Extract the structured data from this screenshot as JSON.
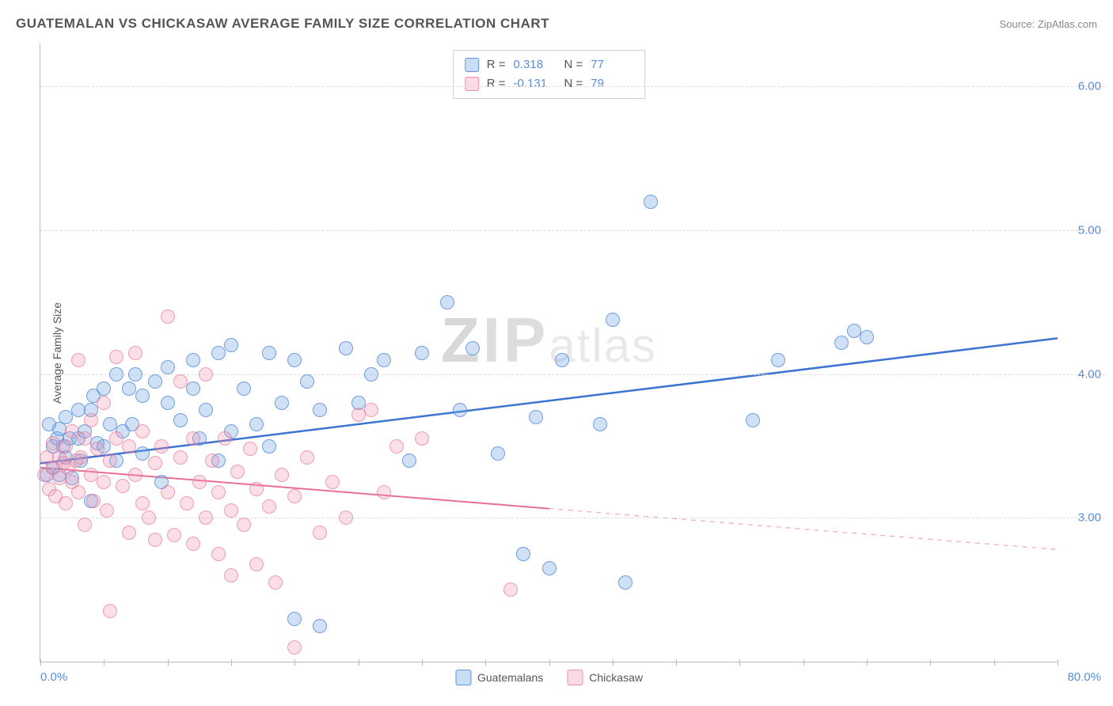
{
  "header": {
    "title": "GUATEMALAN VS CHICKASAW AVERAGE FAMILY SIZE CORRELATION CHART",
    "source_prefix": "Source: ",
    "source_name": "ZipAtlas.com"
  },
  "ylabel": "Average Family Size",
  "watermark": {
    "part1": "ZIP",
    "part2": "atlas"
  },
  "chart": {
    "type": "scatter",
    "xlim": [
      0,
      80
    ],
    "ylim": [
      2.0,
      6.3
    ],
    "x_tick_step": 5,
    "x_label_min": "0.0%",
    "x_label_max": "80.0%",
    "y_ticks": [
      3.0,
      4.0,
      5.0,
      6.0
    ],
    "y_tick_labels": [
      "3.00",
      "4.00",
      "5.00",
      "6.00"
    ],
    "grid_color": "#dddddd",
    "axis_color": "#bbbbbb",
    "background_color": "#ffffff",
    "tick_label_color": "#5b8dd6",
    "series": [
      {
        "key": "a",
        "label": "Guatemalans",
        "color_fill": "rgba(120,170,230,0.35)",
        "color_stroke": "rgba(70,130,210,0.7)",
        "line_color": "#3b74d1",
        "line_width": 2.5,
        "r_value": "0.318",
        "n_value": "77",
        "trend": {
          "x1": 0,
          "y1": 3.38,
          "x2": 80,
          "y2": 4.25,
          "solid_until_x": 80
        },
        "points": [
          [
            0.5,
            3.3
          ],
          [
            0.7,
            3.65
          ],
          [
            1.0,
            3.5
          ],
          [
            1.0,
            3.35
          ],
          [
            1.3,
            3.55
          ],
          [
            1.5,
            3.3
          ],
          [
            1.5,
            3.62
          ],
          [
            1.8,
            3.5
          ],
          [
            2.0,
            3.42
          ],
          [
            2.0,
            3.7
          ],
          [
            2.3,
            3.55
          ],
          [
            2.5,
            3.28
          ],
          [
            3.0,
            3.55
          ],
          [
            3.0,
            3.75
          ],
          [
            3.2,
            3.4
          ],
          [
            3.5,
            3.6
          ],
          [
            4.0,
            3.12
          ],
          [
            4.0,
            3.75
          ],
          [
            4.2,
            3.85
          ],
          [
            4.5,
            3.52
          ],
          [
            5.0,
            3.9
          ],
          [
            5.0,
            3.5
          ],
          [
            5.5,
            3.65
          ],
          [
            6.0,
            3.4
          ],
          [
            6.0,
            4.0
          ],
          [
            6.5,
            3.6
          ],
          [
            7.0,
            3.9
          ],
          [
            7.2,
            3.65
          ],
          [
            7.5,
            4.0
          ],
          [
            8.0,
            3.45
          ],
          [
            8.0,
            3.85
          ],
          [
            9.0,
            3.95
          ],
          [
            9.5,
            3.25
          ],
          [
            10.0,
            3.8
          ],
          [
            10.0,
            4.05
          ],
          [
            11.0,
            3.68
          ],
          [
            12.0,
            3.9
          ],
          [
            12.0,
            4.1
          ],
          [
            12.5,
            3.55
          ],
          [
            13.0,
            3.75
          ],
          [
            14.0,
            4.15
          ],
          [
            14.0,
            3.4
          ],
          [
            15.0,
            4.2
          ],
          [
            15.0,
            3.6
          ],
          [
            16.0,
            3.9
          ],
          [
            17.0,
            3.65
          ],
          [
            18.0,
            4.15
          ],
          [
            18.0,
            3.5
          ],
          [
            19.0,
            3.8
          ],
          [
            20.0,
            4.1
          ],
          [
            20.0,
            2.3
          ],
          [
            21.0,
            3.95
          ],
          [
            22.0,
            3.75
          ],
          [
            22.0,
            2.25
          ],
          [
            24.0,
            4.18
          ],
          [
            25.0,
            3.8
          ],
          [
            26.0,
            4.0
          ],
          [
            27.0,
            4.1
          ],
          [
            29.0,
            3.4
          ],
          [
            30.0,
            4.15
          ],
          [
            32.0,
            4.5
          ],
          [
            33.0,
            3.75
          ],
          [
            34.0,
            4.18
          ],
          [
            36.0,
            3.45
          ],
          [
            38.0,
            2.75
          ],
          [
            39.0,
            3.7
          ],
          [
            40.0,
            2.65
          ],
          [
            41.0,
            4.1
          ],
          [
            44.0,
            3.65
          ],
          [
            45.0,
            4.38
          ],
          [
            46.0,
            2.55
          ],
          [
            48.0,
            5.2
          ],
          [
            56.0,
            3.68
          ],
          [
            58.0,
            4.1
          ],
          [
            63.0,
            4.22
          ],
          [
            64.0,
            4.3
          ],
          [
            65.0,
            4.26
          ]
        ]
      },
      {
        "key": "b",
        "label": "Chickasaw",
        "color_fill": "rgba(240,150,175,0.3)",
        "color_stroke": "rgba(230,110,145,0.6)",
        "line_color": "#e76f93",
        "line_width": 2,
        "r_value": "-0.131",
        "n_value": "79",
        "trend": {
          "x1": 0,
          "y1": 3.35,
          "x2": 80,
          "y2": 2.78,
          "solid_until_x": 40
        },
        "points": [
          [
            0.3,
            3.3
          ],
          [
            0.5,
            3.42
          ],
          [
            0.7,
            3.2
          ],
          [
            1.0,
            3.35
          ],
          [
            1.0,
            3.52
          ],
          [
            1.2,
            3.15
          ],
          [
            1.5,
            3.42
          ],
          [
            1.5,
            3.28
          ],
          [
            1.8,
            3.38
          ],
          [
            2.0,
            3.1
          ],
          [
            2.0,
            3.5
          ],
          [
            2.2,
            3.35
          ],
          [
            2.5,
            3.25
          ],
          [
            2.5,
            3.6
          ],
          [
            2.8,
            3.4
          ],
          [
            3.0,
            3.18
          ],
          [
            3.0,
            4.1
          ],
          [
            3.2,
            3.42
          ],
          [
            3.5,
            2.95
          ],
          [
            3.5,
            3.55
          ],
          [
            4.0,
            3.3
          ],
          [
            4.0,
            3.68
          ],
          [
            4.2,
            3.12
          ],
          [
            4.5,
            3.48
          ],
          [
            5.0,
            3.25
          ],
          [
            5.0,
            3.8
          ],
          [
            5.2,
            3.05
          ],
          [
            5.5,
            3.4
          ],
          [
            5.5,
            2.35
          ],
          [
            6.0,
            3.55
          ],
          [
            6.0,
            4.12
          ],
          [
            6.5,
            3.22
          ],
          [
            7.0,
            2.9
          ],
          [
            7.0,
            3.5
          ],
          [
            7.5,
            4.15
          ],
          [
            7.5,
            3.3
          ],
          [
            8.0,
            3.1
          ],
          [
            8.0,
            3.6
          ],
          [
            8.5,
            3.0
          ],
          [
            9.0,
            3.38
          ],
          [
            9.0,
            2.85
          ],
          [
            9.5,
            3.5
          ],
          [
            10.0,
            4.4
          ],
          [
            10.0,
            3.18
          ],
          [
            10.5,
            2.88
          ],
          [
            11.0,
            3.42
          ],
          [
            11.0,
            3.95
          ],
          [
            11.5,
            3.1
          ],
          [
            12.0,
            2.82
          ],
          [
            12.0,
            3.55
          ],
          [
            12.5,
            3.25
          ],
          [
            13.0,
            3.0
          ],
          [
            13.0,
            4.0
          ],
          [
            13.5,
            3.4
          ],
          [
            14.0,
            2.75
          ],
          [
            14.0,
            3.18
          ],
          [
            14.5,
            3.55
          ],
          [
            15.0,
            3.05
          ],
          [
            15.0,
            2.6
          ],
          [
            15.5,
            3.32
          ],
          [
            16.0,
            2.95
          ],
          [
            16.5,
            3.48
          ],
          [
            17.0,
            2.68
          ],
          [
            17.0,
            3.2
          ],
          [
            18.0,
            3.08
          ],
          [
            18.5,
            2.55
          ],
          [
            19.0,
            3.3
          ],
          [
            20.0,
            2.1
          ],
          [
            20.0,
            3.15
          ],
          [
            21.0,
            3.42
          ],
          [
            22.0,
            2.9
          ],
          [
            23.0,
            3.25
          ],
          [
            24.0,
            3.0
          ],
          [
            25.0,
            3.72
          ],
          [
            26.0,
            3.75
          ],
          [
            27.0,
            3.18
          ],
          [
            28.0,
            3.5
          ],
          [
            30.0,
            3.55
          ],
          [
            37.0,
            2.5
          ]
        ]
      }
    ]
  },
  "legend": {
    "bottom": [
      {
        "swatch": "a",
        "label": "Guatemalans"
      },
      {
        "swatch": "b",
        "label": "Chickasaw"
      }
    ]
  },
  "stats_box": {
    "r_label": "R =",
    "n_label": "N ="
  }
}
